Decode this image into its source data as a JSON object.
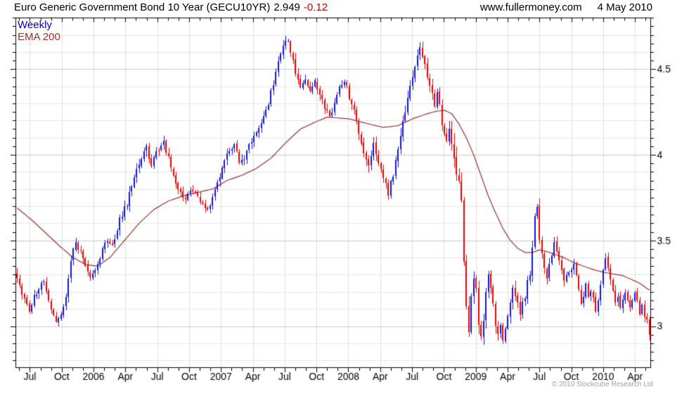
{
  "header": {
    "title": "Euro Generic Government Bond 10 Year (GECU10YR)",
    "symbol": "GECU10YR",
    "last_price": "2.949",
    "change": "-0.12",
    "website": "www.fullermoney.com",
    "date": "4 May 2010"
  },
  "legend": {
    "timeframe": "Weekly",
    "overlay": "EMA 200"
  },
  "footer": {
    "copyright": "© 2010 Stockcube Research Ltd"
  },
  "colors": {
    "up": "#1414dc",
    "down": "#ee0000",
    "ema": "#993333",
    "legend_weekly": "#0000cc",
    "change_negative": "#cc0000",
    "grid_minor": "#e6e6e6",
    "grid_major": "#c9c9c9",
    "grid_vertical": "#e0e0e0",
    "axis": "#000000",
    "text": "#000000",
    "copyright": "#a0a0a0",
    "background": "#ffffff"
  },
  "chart_data": {
    "type": "candlestick",
    "title": "Euro Generic Government Bond 10 Year (GECU10YR)",
    "timeframe": "weekly",
    "overlay": "EMA 200",
    "last_close": 2.949,
    "change": -0.12,
    "weeks": 260,
    "x_range": [
      "May 2005",
      "May 2010"
    ],
    "months_start_week": 0.9,
    "weeks_per_month": 4.348,
    "y_axis": {
      "min": 2.75,
      "max": 4.8,
      "grid_step": 0.1,
      "tick_step": 0.05,
      "ticks": [
        {
          "v": 4.5,
          "label": "4.5"
        },
        {
          "v": 4.0,
          "label": "4"
        },
        {
          "v": 3.5,
          "label": "3.5"
        },
        {
          "v": 3.0,
          "label": "3"
        }
      ]
    },
    "x_ticks": [
      {
        "k": 1,
        "label": "Jul"
      },
      {
        "k": 4,
        "label": "Oct"
      },
      {
        "k": 7,
        "label": "2006"
      },
      {
        "k": 10,
        "label": "Apr"
      },
      {
        "k": 13,
        "label": "Jul"
      },
      {
        "k": 16,
        "label": "Oct"
      },
      {
        "k": 19,
        "label": "2007"
      },
      {
        "k": 22,
        "label": "Apr"
      },
      {
        "k": 25,
        "label": "Jul"
      },
      {
        "k": 28,
        "label": "Oct"
      },
      {
        "k": 31,
        "label": "2008"
      },
      {
        "k": 34,
        "label": "Apr"
      },
      {
        "k": 37,
        "label": "Jul"
      },
      {
        "k": 40,
        "label": "Oct"
      },
      {
        "k": 43,
        "label": "2009"
      },
      {
        "k": 46,
        "label": "Apr"
      },
      {
        "k": 49,
        "label": "Jul"
      },
      {
        "k": 52,
        "label": "Oct"
      },
      {
        "k": 55,
        "label": "2010"
      },
      {
        "k": 58,
        "label": "Apr"
      }
    ],
    "close_anchors": [
      [
        0,
        3.28,
        0.03
      ],
      [
        2,
        3.18,
        0.03
      ],
      [
        5,
        3.1,
        0.028
      ],
      [
        8,
        3.2,
        0.03
      ],
      [
        11,
        3.26,
        0.03
      ],
      [
        13,
        3.15,
        0.03
      ],
      [
        16,
        3.03,
        0.025
      ],
      [
        18,
        3.08,
        0.025
      ],
      [
        20,
        3.16,
        0.03
      ],
      [
        22,
        3.38,
        0.035
      ],
      [
        24,
        3.49,
        0.03
      ],
      [
        27,
        3.4,
        0.03
      ],
      [
        30,
        3.3,
        0.03
      ],
      [
        33,
        3.36,
        0.03
      ],
      [
        36,
        3.5,
        0.03
      ],
      [
        39,
        3.47,
        0.03
      ],
      [
        42,
        3.62,
        0.032
      ],
      [
        45,
        3.72,
        0.035
      ],
      [
        48,
        3.86,
        0.035
      ],
      [
        51,
        3.99,
        0.035
      ],
      [
        53,
        4.06,
        0.032
      ],
      [
        55,
        3.92,
        0.032
      ],
      [
        57,
        4.02,
        0.03
      ],
      [
        60,
        4.07,
        0.03
      ],
      [
        62,
        3.98,
        0.03
      ],
      [
        64,
        3.88,
        0.03
      ],
      [
        66,
        3.79,
        0.028
      ],
      [
        69,
        3.74,
        0.028
      ],
      [
        72,
        3.8,
        0.026
      ],
      [
        75,
        3.72,
        0.025
      ],
      [
        78,
        3.67,
        0.025
      ],
      [
        80,
        3.76,
        0.026
      ],
      [
        83,
        3.88,
        0.03
      ],
      [
        86,
        4.0,
        0.03
      ],
      [
        89,
        4.07,
        0.03
      ],
      [
        91,
        3.95,
        0.032
      ],
      [
        93,
        3.98,
        0.03
      ],
      [
        95,
        4.05,
        0.03
      ],
      [
        97,
        4.1,
        0.03
      ],
      [
        99,
        4.16,
        0.03
      ],
      [
        101,
        4.22,
        0.032
      ],
      [
        103,
        4.3,
        0.035
      ],
      [
        105,
        4.42,
        0.038
      ],
      [
        107,
        4.55,
        0.038
      ],
      [
        109,
        4.65,
        0.035
      ],
      [
        111,
        4.66,
        0.03
      ],
      [
        112,
        4.6,
        0.032
      ],
      [
        114,
        4.48,
        0.035
      ],
      [
        116,
        4.4,
        0.032
      ],
      [
        118,
        4.44,
        0.03
      ],
      [
        120,
        4.36,
        0.03
      ],
      [
        122,
        4.42,
        0.03
      ],
      [
        124,
        4.36,
        0.03
      ],
      [
        126,
        4.28,
        0.032
      ],
      [
        128,
        4.22,
        0.03
      ],
      [
        130,
        4.3,
        0.03
      ],
      [
        132,
        4.4,
        0.03
      ],
      [
        134,
        4.44,
        0.028
      ],
      [
        136,
        4.34,
        0.032
      ],
      [
        138,
        4.25,
        0.032
      ],
      [
        140,
        4.12,
        0.035
      ],
      [
        142,
        4.0,
        0.038
      ],
      [
        144,
        3.92,
        0.038
      ],
      [
        146,
        4.06,
        0.038
      ],
      [
        148,
        3.95,
        0.038
      ],
      [
        150,
        3.85,
        0.038
      ],
      [
        152,
        3.78,
        0.04
      ],
      [
        154,
        3.88,
        0.04
      ],
      [
        156,
        4.02,
        0.042
      ],
      [
        158,
        4.18,
        0.042
      ],
      [
        160,
        4.32,
        0.042
      ],
      [
        162,
        4.46,
        0.038
      ],
      [
        164,
        4.58,
        0.034
      ],
      [
        165,
        4.62,
        0.032
      ],
      [
        167,
        4.52,
        0.038
      ],
      [
        169,
        4.4,
        0.04
      ],
      [
        171,
        4.3,
        0.042
      ],
      [
        172,
        4.38,
        0.04
      ],
      [
        174,
        4.2,
        0.05
      ],
      [
        176,
        4.08,
        0.055
      ],
      [
        177,
        4.18,
        0.055
      ],
      [
        179,
        3.98,
        0.06
      ],
      [
        181,
        3.85,
        0.06
      ],
      [
        182,
        3.72,
        0.055
      ],
      [
        183,
        3.38,
        0.07
      ],
      [
        184,
        3.12,
        0.07
      ],
      [
        185,
        2.98,
        0.06
      ],
      [
        186,
        3.18,
        0.055
      ],
      [
        187,
        3.28,
        0.045
      ],
      [
        188,
        3.2,
        0.045
      ],
      [
        189,
        2.98,
        0.05
      ],
      [
        190,
        2.92,
        0.045
      ],
      [
        191,
        3.05,
        0.045
      ],
      [
        192,
        3.2,
        0.045
      ],
      [
        193,
        3.3,
        0.038
      ],
      [
        194,
        3.22,
        0.038
      ],
      [
        195,
        3.12,
        0.042
      ],
      [
        196,
        3.02,
        0.042
      ],
      [
        197,
        2.95,
        0.038
      ],
      [
        198,
        2.99,
        0.036
      ],
      [
        199,
        2.91,
        0.032
      ],
      [
        200,
        2.97,
        0.036
      ],
      [
        201,
        3.06,
        0.038
      ],
      [
        202,
        3.14,
        0.04
      ],
      [
        203,
        3.24,
        0.038
      ],
      [
        204,
        3.18,
        0.036
      ],
      [
        205,
        3.12,
        0.036
      ],
      [
        206,
        3.06,
        0.036
      ],
      [
        207,
        3.14,
        0.036
      ],
      [
        208,
        3.18,
        0.036
      ],
      [
        209,
        3.25,
        0.036
      ],
      [
        210,
        3.28,
        0.038
      ],
      [
        211,
        3.45,
        0.045
      ],
      [
        212,
        3.66,
        0.045
      ],
      [
        213,
        3.68,
        0.038
      ],
      [
        214,
        3.5,
        0.045
      ],
      [
        215,
        3.42,
        0.038
      ],
      [
        216,
        3.35,
        0.036
      ],
      [
        217,
        3.28,
        0.036
      ],
      [
        218,
        3.35,
        0.036
      ],
      [
        219,
        3.42,
        0.036
      ],
      [
        220,
        3.48,
        0.032
      ],
      [
        221,
        3.44,
        0.03
      ],
      [
        222,
        3.38,
        0.032
      ],
      [
        223,
        3.32,
        0.03
      ],
      [
        224,
        3.26,
        0.032
      ],
      [
        226,
        3.32,
        0.03
      ],
      [
        228,
        3.36,
        0.03
      ],
      [
        229,
        3.3,
        0.03
      ],
      [
        230,
        3.2,
        0.032
      ],
      [
        231,
        3.14,
        0.03
      ],
      [
        232,
        3.18,
        0.03
      ],
      [
        233,
        3.24,
        0.032
      ],
      [
        234,
        3.18,
        0.03
      ],
      [
        235,
        3.22,
        0.03
      ],
      [
        236,
        3.16,
        0.03
      ],
      [
        237,
        3.1,
        0.032
      ],
      [
        238,
        3.16,
        0.03
      ],
      [
        239,
        3.24,
        0.03
      ],
      [
        240,
        3.34,
        0.032
      ],
      [
        241,
        3.4,
        0.03
      ],
      [
        242,
        3.34,
        0.03
      ],
      [
        243,
        3.28,
        0.03
      ],
      [
        244,
        3.2,
        0.03
      ],
      [
        245,
        3.14,
        0.032
      ],
      [
        246,
        3.18,
        0.028
      ],
      [
        247,
        3.12,
        0.028
      ],
      [
        248,
        3.16,
        0.028
      ],
      [
        249,
        3.2,
        0.028
      ],
      [
        250,
        3.14,
        0.028
      ],
      [
        251,
        3.1,
        0.028
      ],
      [
        252,
        3.14,
        0.028
      ],
      [
        253,
        3.18,
        0.028
      ],
      [
        254,
        3.14,
        0.028
      ],
      [
        255,
        3.08,
        0.028
      ],
      [
        256,
        3.12,
        0.028
      ],
      [
        257,
        3.06,
        0.032
      ],
      [
        258,
        3.04,
        0.03
      ],
      [
        259,
        2.949,
        0.05
      ]
    ],
    "ema_anchors": [
      [
        0,
        3.69
      ],
      [
        6,
        3.62
      ],
      [
        12,
        3.54
      ],
      [
        18,
        3.46
      ],
      [
        23,
        3.4
      ],
      [
        28,
        3.36
      ],
      [
        33,
        3.35
      ],
      [
        38,
        3.4
      ],
      [
        44,
        3.5
      ],
      [
        50,
        3.6
      ],
      [
        56,
        3.68
      ],
      [
        62,
        3.73
      ],
      [
        68,
        3.76
      ],
      [
        74,
        3.78
      ],
      [
        80,
        3.8
      ],
      [
        86,
        3.85
      ],
      [
        92,
        3.88
      ],
      [
        98,
        3.92
      ],
      [
        104,
        3.98
      ],
      [
        110,
        4.07
      ],
      [
        116,
        4.15
      ],
      [
        122,
        4.19
      ],
      [
        127,
        4.22
      ],
      [
        136,
        4.21
      ],
      [
        144,
        4.18
      ],
      [
        150,
        4.16
      ],
      [
        156,
        4.17
      ],
      [
        162,
        4.21
      ],
      [
        168,
        4.24
      ],
      [
        172,
        4.255
      ],
      [
        175,
        4.26
      ],
      [
        178,
        4.24
      ],
      [
        181,
        4.18
      ],
      [
        184,
        4.1
      ],
      [
        187,
        4.0
      ],
      [
        190,
        3.88
      ],
      [
        193,
        3.76
      ],
      [
        196,
        3.66
      ],
      [
        199,
        3.57
      ],
      [
        202,
        3.5
      ],
      [
        205,
        3.455
      ],
      [
        208,
        3.43
      ],
      [
        211,
        3.43
      ],
      [
        214,
        3.445
      ],
      [
        217,
        3.435
      ],
      [
        220,
        3.42
      ],
      [
        224,
        3.4
      ],
      [
        228,
        3.37
      ],
      [
        232,
        3.35
      ],
      [
        236,
        3.33
      ],
      [
        240,
        3.315
      ],
      [
        244,
        3.305
      ],
      [
        248,
        3.295
      ],
      [
        252,
        3.27
      ],
      [
        255,
        3.25
      ],
      [
        257,
        3.23
      ],
      [
        259,
        3.21
      ]
    ]
  }
}
